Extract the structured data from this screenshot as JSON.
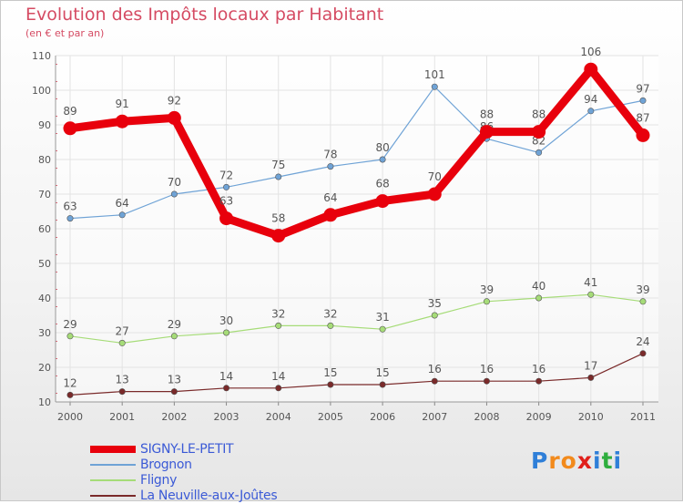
{
  "title": "Evolution des Impôts locaux par Habitant",
  "subtitle": "(en € et par an)",
  "logo": {
    "letters": [
      "P",
      "r",
      "o",
      "x",
      "i",
      "t",
      "i"
    ],
    "colors": [
      "#2f7fd8",
      "#f28a1c",
      "#f28a1c",
      "#e0201b",
      "#2f7fd8",
      "#2fae3e",
      "#2f7fd8"
    ]
  },
  "chart_data": {
    "type": "line",
    "title": "Evolution des Impôts locaux par Habitant",
    "subtitle": "(en € et par an)",
    "xlabel": "",
    "ylabel": "",
    "ylim": [
      10,
      110
    ],
    "yticks": [
      "10",
      "20",
      "30",
      "40",
      "50",
      "60",
      "70",
      "80",
      "90",
      "100",
      "110"
    ],
    "grid": true,
    "legend_position": "bottom-left",
    "x": [
      "2000",
      "2001",
      "2002",
      "2003",
      "2004",
      "2005",
      "2006",
      "2007",
      "2008",
      "2009",
      "2010",
      "2011"
    ],
    "series": [
      {
        "name": "La Neuville-aux-Joûtes",
        "color": "#7a2a2a",
        "style": "thin",
        "values": [
          12,
          13,
          13,
          14,
          14,
          15,
          15,
          16,
          16,
          16,
          17,
          24
        ]
      },
      {
        "name": "Fligny",
        "color": "#a6dc78",
        "style": "thin",
        "values": [
          29,
          27,
          29,
          30,
          32,
          32,
          31,
          35,
          39,
          40,
          41,
          39
        ]
      },
      {
        "name": "Brognon",
        "color": "#6fa3d6",
        "style": "thin",
        "values": [
          63,
          64,
          70,
          72,
          75,
          78,
          80,
          101,
          86,
          82,
          94,
          97
        ]
      },
      {
        "name": "SIGNY-LE-PETIT",
        "color": "#e8000c",
        "style": "thick",
        "values": [
          89,
          91,
          92,
          63,
          58,
          64,
          68,
          70,
          88,
          88,
          106,
          87
        ]
      }
    ],
    "legend_order": [
      "SIGNY-LE-PETIT",
      "Brognon",
      "Fligny",
      "La Neuville-aux-Joûtes"
    ]
  }
}
